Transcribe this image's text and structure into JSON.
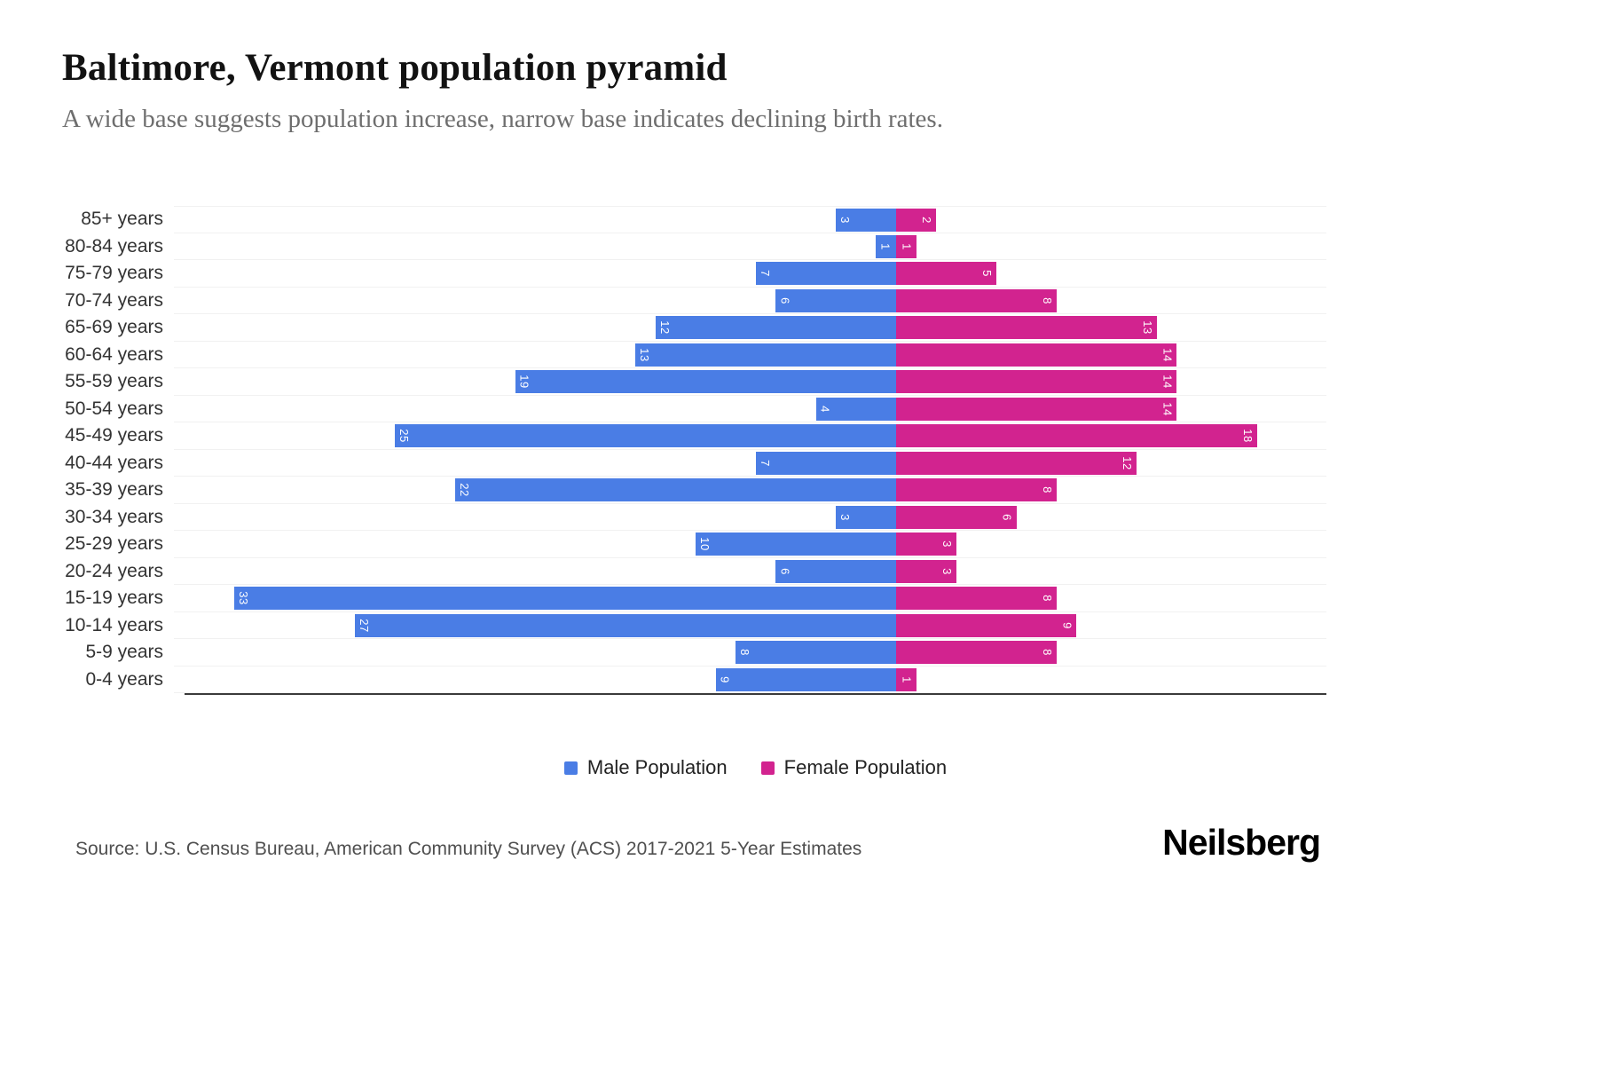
{
  "header": {
    "title": "Baltimore, Vermont population pyramid",
    "subtitle": "A wide base suggests population increase, narrow base indicates declining birth rates."
  },
  "chart_data": {
    "type": "bar",
    "subtype": "population-pyramid",
    "orientation": "horizontal",
    "categories": [
      "85+ years",
      "80-84 years",
      "75-79 years",
      "70-74 years",
      "65-69 years",
      "60-64 years",
      "55-59 years",
      "50-54 years",
      "45-49 years",
      "40-44 years",
      "35-39 years",
      "30-34 years",
      "25-29 years",
      "20-24 years",
      "15-19 years",
      "10-14 years",
      "5-9 years",
      "0-4 years"
    ],
    "series": [
      {
        "name": "Male Population",
        "color": "#4a7de5",
        "direction": "left",
        "values": [
          3,
          1,
          7,
          6,
          12,
          13,
          19,
          4,
          25,
          7,
          22,
          3,
          10,
          6,
          33,
          27,
          8,
          9
        ]
      },
      {
        "name": "Female Population",
        "color": "#d2238f",
        "direction": "right",
        "values": [
          2,
          1,
          5,
          8,
          13,
          14,
          14,
          14,
          18,
          12,
          8,
          6,
          3,
          3,
          8,
          9,
          8,
          1
        ]
      }
    ],
    "value_axis_max": 33,
    "grid": true,
    "legend_position": "bottom",
    "bar_label_color": "#ffffff",
    "bar_label_rotation": 90
  },
  "legend": {
    "male_label": "Male Population",
    "female_label": "Female Population"
  },
  "footer": {
    "source": "Source: U.S. Census Bureau, American Community Survey (ACS) 2017-2021 5-Year Estimates",
    "logo": "Neilsberg"
  }
}
